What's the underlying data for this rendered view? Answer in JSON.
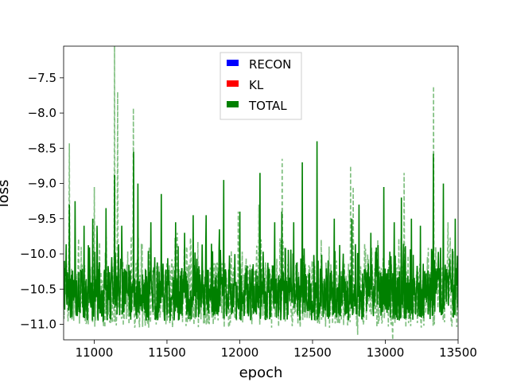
{
  "chart_data": {
    "type": "line",
    "title": "",
    "xlabel": "epoch",
    "ylabel": "loss",
    "xlim": [
      10790,
      13500
    ],
    "ylim": [
      -11.22,
      -7.05
    ],
    "x_ticks": [
      11000,
      11500,
      12000,
      12500,
      13000,
      13500
    ],
    "y_ticks": [
      -7.5,
      -8.0,
      -8.5,
      -9.0,
      -9.5,
      -10.0,
      -10.5,
      -11.0
    ],
    "x_tick_labels": [
      "11000",
      "11500",
      "12000",
      "12500",
      "13000",
      "13500"
    ],
    "y_tick_labels": [
      "−7.5",
      "−8.0",
      "−8.5",
      "−9.0",
      "−9.5",
      "−10.0",
      "−10.5",
      "−11.0"
    ],
    "grid": false,
    "legend_position": "top-center",
    "series": [
      {
        "name": "RECON",
        "color": "#0000ff",
        "style": "solid",
        "values": []
      },
      {
        "name": "KL",
        "color": "#ff0000",
        "style": "solid",
        "values": []
      },
      {
        "name": "TOTAL",
        "color": "#008000",
        "style": "solid",
        "baseline": -10.6,
        "band": [
          -10.95,
          -10.2
        ],
        "peaks": [
          [
            10830,
            -9.3
          ],
          [
            10870,
            -9.25
          ],
          [
            10930,
            -9.6
          ],
          [
            10990,
            -9.5
          ],
          [
            11020,
            -9.6
          ],
          [
            11080,
            -9.35
          ],
          [
            11140,
            -8.88
          ],
          [
            11190,
            -9.6
          ],
          [
            11270,
            -8.55
          ],
          [
            11300,
            -9.0
          ],
          [
            11390,
            -9.55
          ],
          [
            11460,
            -9.15
          ],
          [
            11560,
            -9.55
          ],
          [
            11620,
            -9.7
          ],
          [
            11680,
            -9.45
          ],
          [
            11770,
            -9.45
          ],
          [
            11860,
            -9.65
          ],
          [
            11890,
            -8.95
          ],
          [
            12000,
            -9.4
          ],
          [
            12140,
            -8.85
          ],
          [
            12240,
            -9.55
          ],
          [
            12290,
            -9.4
          ],
          [
            12370,
            -9.55
          ],
          [
            12430,
            -8.7
          ],
          [
            12530,
            -8.4
          ],
          [
            12650,
            -9.5
          ],
          [
            12770,
            -9.5
          ],
          [
            12820,
            -9.3
          ],
          [
            12900,
            -9.7
          ],
          [
            12990,
            -9.05
          ],
          [
            13060,
            -9.55
          ],
          [
            13110,
            -9.2
          ],
          [
            13180,
            -9.5
          ],
          [
            13240,
            -9.6
          ],
          [
            13330,
            -8.58
          ],
          [
            13400,
            -9.0
          ],
          [
            13480,
            -9.5
          ]
        ]
      },
      {
        "name": "",
        "color": "#008000",
        "style": "dashed",
        "opacity": 0.5,
        "band": [
          -11.05,
          -10.1
        ],
        "peaks": [
          [
            10830,
            -8.43
          ],
          [
            10910,
            -9.9
          ],
          [
            11000,
            -9.05
          ],
          [
            11140,
            -7.05
          ],
          [
            11160,
            -7.7
          ],
          [
            11270,
            -7.93
          ],
          [
            11330,
            -9.85
          ],
          [
            11570,
            -9.7
          ],
          [
            11680,
            -9.7
          ],
          [
            11990,
            -9.4
          ],
          [
            12130,
            -9.3
          ],
          [
            12290,
            -8.65
          ],
          [
            12560,
            -9.8
          ],
          [
            12760,
            -8.75
          ],
          [
            12780,
            -9.05
          ],
          [
            13050,
            -9.5
          ],
          [
            13130,
            -8.85
          ],
          [
            13330,
            -7.62
          ],
          [
            13430,
            -9.55
          ]
        ],
        "dips": [
          [
            10860,
            -10.95
          ],
          [
            10960,
            -11.0
          ],
          [
            11240,
            -11.0
          ],
          [
            12810,
            -11.15
          ],
          [
            13050,
            -11.22
          ]
        ]
      }
    ]
  }
}
